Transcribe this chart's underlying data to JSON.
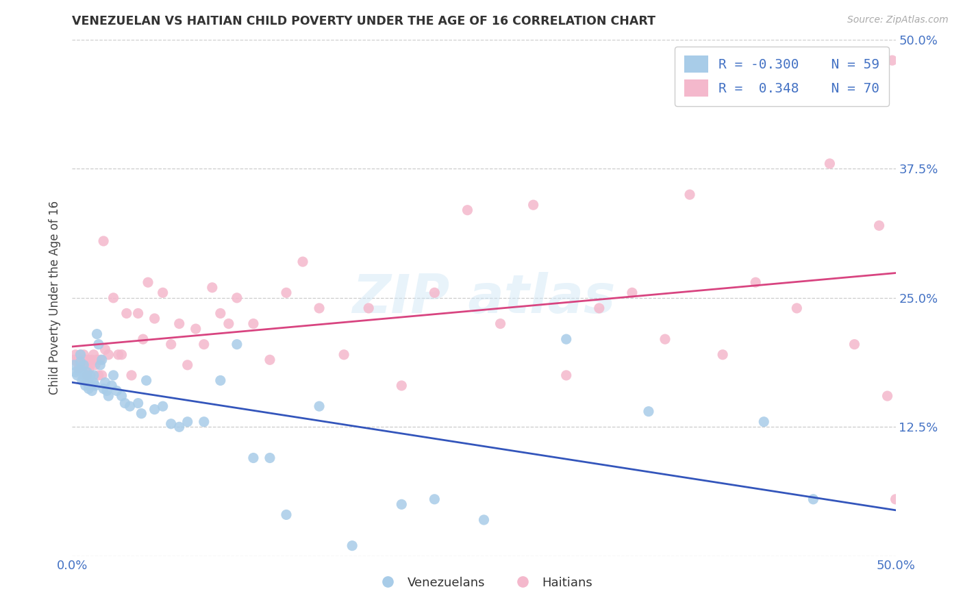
{
  "title": "VENEZUELAN VS HAITIAN CHILD POVERTY UNDER THE AGE OF 16 CORRELATION CHART",
  "source": "Source: ZipAtlas.com",
  "ylabel": "Child Poverty Under the Age of 16",
  "xlim": [
    0.0,
    0.5
  ],
  "ylim": [
    0.0,
    0.5
  ],
  "venezuelan_color": "#a8cce8",
  "haitian_color": "#f4b8cc",
  "venezuelan_line_color": "#3355bb",
  "haitian_line_color": "#d84480",
  "legend_R_venezuelan": "-0.300",
  "legend_N_venezuelan": "59",
  "legend_R_haitian": "0.348",
  "legend_N_haitian": "70",
  "background_color": "#ffffff",
  "venezuelan_x": [
    0.001,
    0.002,
    0.003,
    0.004,
    0.005,
    0.005,
    0.006,
    0.006,
    0.007,
    0.007,
    0.008,
    0.008,
    0.009,
    0.009,
    0.01,
    0.01,
    0.011,
    0.011,
    0.012,
    0.013,
    0.013,
    0.014,
    0.015,
    0.016,
    0.017,
    0.018,
    0.019,
    0.02,
    0.021,
    0.022,
    0.024,
    0.025,
    0.027,
    0.03,
    0.032,
    0.035,
    0.04,
    0.042,
    0.045,
    0.05,
    0.055,
    0.06,
    0.065,
    0.07,
    0.08,
    0.09,
    0.1,
    0.11,
    0.12,
    0.13,
    0.15,
    0.17,
    0.2,
    0.22,
    0.25,
    0.3,
    0.35,
    0.42,
    0.45
  ],
  "venezuelan_y": [
    0.185,
    0.178,
    0.175,
    0.18,
    0.195,
    0.188,
    0.17,
    0.18,
    0.172,
    0.185,
    0.165,
    0.175,
    0.168,
    0.178,
    0.162,
    0.172,
    0.165,
    0.175,
    0.16,
    0.168,
    0.175,
    0.165,
    0.215,
    0.205,
    0.185,
    0.19,
    0.162,
    0.168,
    0.16,
    0.155,
    0.165,
    0.175,
    0.16,
    0.155,
    0.148,
    0.145,
    0.148,
    0.138,
    0.17,
    0.142,
    0.145,
    0.128,
    0.125,
    0.13,
    0.13,
    0.17,
    0.205,
    0.095,
    0.095,
    0.04,
    0.145,
    0.01,
    0.05,
    0.055,
    0.035,
    0.21,
    0.14,
    0.13,
    0.055
  ],
  "haitian_x": [
    0.001,
    0.002,
    0.003,
    0.004,
    0.005,
    0.005,
    0.006,
    0.007,
    0.007,
    0.008,
    0.008,
    0.009,
    0.01,
    0.01,
    0.011,
    0.012,
    0.013,
    0.014,
    0.015,
    0.016,
    0.017,
    0.018,
    0.019,
    0.02,
    0.022,
    0.025,
    0.028,
    0.03,
    0.033,
    0.036,
    0.04,
    0.043,
    0.046,
    0.05,
    0.055,
    0.06,
    0.065,
    0.07,
    0.075,
    0.08,
    0.085,
    0.09,
    0.095,
    0.1,
    0.11,
    0.12,
    0.13,
    0.14,
    0.15,
    0.165,
    0.18,
    0.2,
    0.22,
    0.24,
    0.26,
    0.28,
    0.3,
    0.32,
    0.34,
    0.36,
    0.375,
    0.395,
    0.415,
    0.44,
    0.46,
    0.475,
    0.49,
    0.495,
    0.498,
    0.5
  ],
  "haitian_y": [
    0.19,
    0.195,
    0.188,
    0.182,
    0.195,
    0.185,
    0.19,
    0.185,
    0.195,
    0.185,
    0.19,
    0.175,
    0.19,
    0.18,
    0.185,
    0.19,
    0.195,
    0.185,
    0.19,
    0.175,
    0.19,
    0.175,
    0.305,
    0.2,
    0.195,
    0.25,
    0.195,
    0.195,
    0.235,
    0.175,
    0.235,
    0.21,
    0.265,
    0.23,
    0.255,
    0.205,
    0.225,
    0.185,
    0.22,
    0.205,
    0.26,
    0.235,
    0.225,
    0.25,
    0.225,
    0.19,
    0.255,
    0.285,
    0.24,
    0.195,
    0.24,
    0.165,
    0.255,
    0.335,
    0.225,
    0.34,
    0.175,
    0.24,
    0.255,
    0.21,
    0.35,
    0.195,
    0.265,
    0.24,
    0.38,
    0.205,
    0.32,
    0.155,
    0.48,
    0.055
  ]
}
